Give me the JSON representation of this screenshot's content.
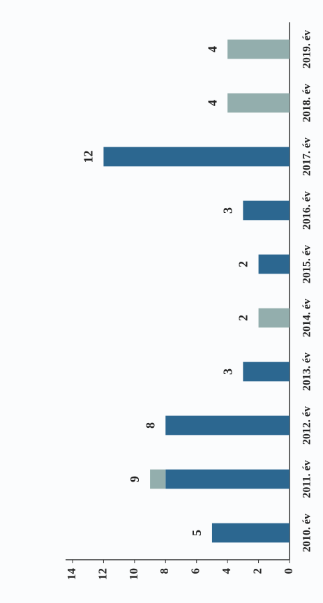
{
  "chart_data": {
    "type": "bar",
    "categories": [
      "2010. év",
      "2011. év",
      "2012. év",
      "2013. év",
      "2014. év",
      "2015. év",
      "2016. év",
      "2017. év",
      "2018. év",
      "2019. év"
    ],
    "series": [
      {
        "color": "#2c6790",
        "values": [
          5,
          8,
          8,
          3,
          0,
          2,
          3,
          12,
          0,
          0
        ]
      },
      {
        "color": "#93aead",
        "values": [
          0,
          1,
          0,
          0,
          2,
          0,
          0,
          0,
          4,
          4
        ]
      }
    ],
    "totals": [
      5,
      9,
      8,
      3,
      2,
      2,
      3,
      12,
      4,
      4
    ],
    "ylim": [
      0,
      14
    ],
    "yticks": [
      0,
      2,
      4,
      6,
      8,
      10,
      12,
      14
    ]
  }
}
